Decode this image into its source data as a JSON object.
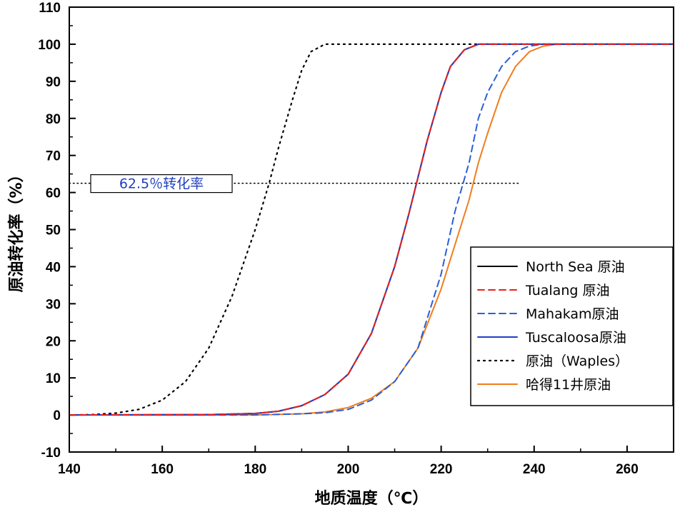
{
  "chart_data": {
    "type": "line",
    "xlabel": "地质温度（℃）",
    "ylabel": "原油转化率（%）",
    "xlim": [
      140,
      270
    ],
    "ylim": [
      -10,
      110
    ],
    "xticks": [
      140,
      160,
      180,
      200,
      220,
      240,
      260
    ],
    "yticks": [
      -10,
      0,
      10,
      20,
      30,
      40,
      50,
      60,
      70,
      80,
      90,
      100,
      110
    ],
    "grid": false,
    "legend_position": "right",
    "reference_line": {
      "y": 62.5,
      "x_range": [
        140,
        237
      ],
      "label": "62.5％转化率"
    },
    "series": [
      {
        "name": "North Sea 原油",
        "color": "#000000",
        "style": "solid",
        "x": [
          140,
          170,
          180,
          185,
          190,
          195,
          200,
          205,
          210,
          213,
          215,
          217,
          220,
          222,
          225,
          228,
          235,
          245,
          270
        ],
        "y": [
          0,
          0.1,
          0.4,
          1,
          2.5,
          5.5,
          11,
          22,
          40,
          54,
          64,
          74,
          87,
          94,
          98.5,
          100,
          100,
          100,
          100
        ]
      },
      {
        "name": "Tualang 原油",
        "color": "#e8201e",
        "style": "dashed",
        "x": [
          140,
          170,
          180,
          185,
          190,
          195,
          200,
          205,
          210,
          213,
          215,
          217,
          220,
          222,
          225,
          228,
          235,
          245,
          270
        ],
        "y": [
          0,
          0.1,
          0.4,
          1,
          2.5,
          5.5,
          11,
          22,
          40,
          54,
          64,
          74,
          87,
          94,
          98.5,
          100,
          100,
          100,
          100
        ]
      },
      {
        "name": "Mahakam原油",
        "color": "#2b5fd6",
        "style": "dashed",
        "x": [
          140,
          180,
          190,
          195,
          200,
          205,
          210,
          215,
          220,
          223,
          226,
          228,
          230,
          233,
          236,
          239,
          242,
          270
        ],
        "y": [
          0,
          0,
          0.3,
          0.6,
          1.5,
          4,
          9,
          18,
          38,
          55,
          68,
          80,
          87,
          94,
          98,
          99.5,
          100,
          100
        ]
      },
      {
        "name": "Tuscaloosa原油",
        "color": "#1f3fc8",
        "style": "solid",
        "x": [
          140,
          170,
          180,
          185,
          190,
          195,
          200,
          205,
          210,
          213,
          215,
          217,
          220,
          222,
          225,
          228,
          235,
          245,
          270
        ],
        "y": [
          0,
          0.1,
          0.4,
          1,
          2.5,
          5.5,
          11,
          22,
          40,
          54,
          64,
          74,
          87,
          94,
          98.5,
          100,
          100,
          100,
          100
        ]
      },
      {
        "name": "原油（Waples）",
        "color": "#000000",
        "style": "dotted",
        "x": [
          140,
          145,
          150,
          155,
          160,
          165,
          170,
          175,
          180,
          183,
          185,
          188,
          190,
          192,
          195,
          270
        ],
        "y": [
          0,
          0.1,
          0.5,
          1.5,
          4,
          9,
          18,
          32,
          50,
          62.5,
          72,
          85,
          93,
          98,
          100,
          100
        ]
      },
      {
        "name": "哈得11井原油",
        "color": "#f07d1c",
        "style": "solid",
        "x": [
          140,
          180,
          190,
          195,
          200,
          205,
          210,
          215,
          220,
          223,
          226,
          228,
          230,
          233,
          236,
          239,
          242,
          245,
          270
        ],
        "y": [
          0,
          0,
          0.3,
          0.8,
          2,
          4.5,
          9,
          18,
          34,
          46,
          58,
          68,
          76,
          87,
          94,
          98,
          99.5,
          100,
          100
        ]
      }
    ]
  }
}
